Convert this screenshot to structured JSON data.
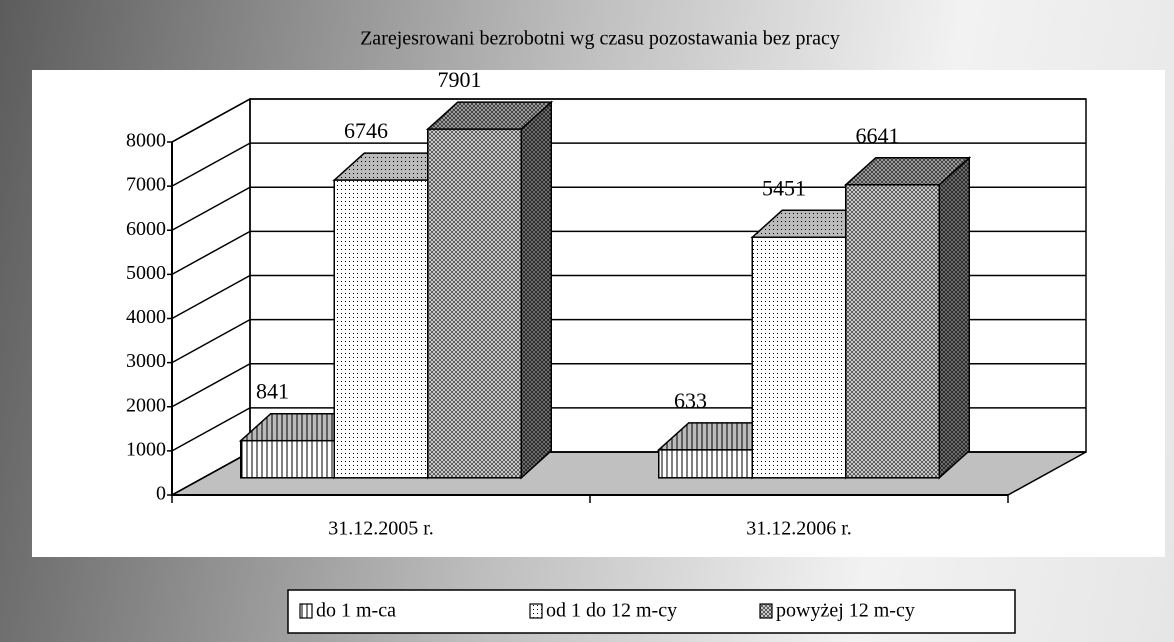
{
  "chart_data": {
    "type": "bar3d",
    "title": "Zarejesrowani bezrobotni wg czasu pozostawania bez pracy",
    "categories": [
      "31.12.2005 r.",
      "31.12.2006 r."
    ],
    "series": [
      {
        "name": "do 1 m-ca",
        "color": "#ffffff",
        "pattern": "vlines",
        "values": [
          841,
          633
        ]
      },
      {
        "name": "od 1 do 12 m-cy",
        "color": "#ffffff",
        "pattern": "dots",
        "values": [
          6746,
          5451
        ]
      },
      {
        "name": "powyżej 12 m-cy",
        "color": "#ffffff",
        "pattern": "cross",
        "values": [
          7901,
          6641
        ]
      }
    ],
    "ylim": [
      0,
      8000
    ],
    "yticks": [
      0,
      1000,
      2000,
      3000,
      4000,
      5000,
      6000,
      7000,
      8000
    ],
    "grid": true,
    "legend": "bottom"
  }
}
